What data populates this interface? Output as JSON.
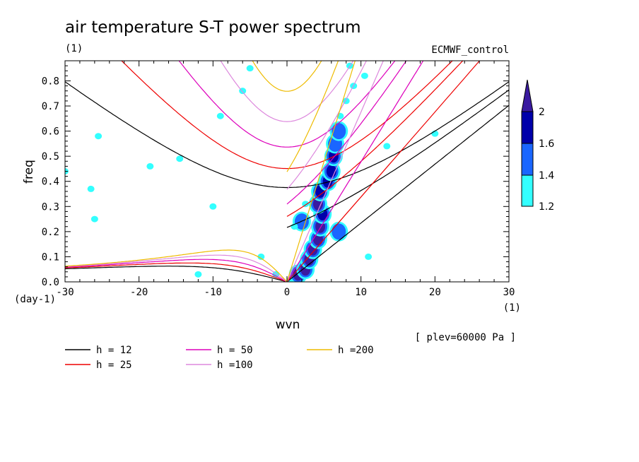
{
  "chart_data": {
    "type": "contour",
    "title": "air temperature S-T power spectrum",
    "units": "(1)",
    "model": "ECMWF_control",
    "xlabel": "wvn",
    "xunits": "(1)",
    "ylabel": "freq",
    "yunits": "(day-1)",
    "level_note": "[ plev=60000 Pa ]",
    "xlim": [
      -30,
      30
    ],
    "ylim": [
      0,
      0.88
    ],
    "x_ticks": [
      -30,
      -20,
      -10,
      0,
      10,
      20,
      30
    ],
    "x_tick_labels": [
      "-30",
      "-20",
      "-10",
      "0",
      "10",
      "20",
      "30"
    ],
    "y_ticks": [
      0,
      0.1,
      0.2,
      0.3,
      0.4,
      0.5,
      0.6,
      0.7,
      0.8
    ],
    "y_tick_labels": [
      "0.0",
      "0.1",
      "0.2",
      "0.3",
      "0.4",
      "0.5",
      "0.6",
      "0.7",
      "0.8"
    ],
    "colorbar": {
      "levels": [
        1.2,
        1.4,
        1.6,
        2
      ],
      "level_labels": [
        "1.2",
        "1.4",
        "1.6",
        "2"
      ],
      "colors": [
        "#33ffff",
        "#1a66ff",
        "#0000aa",
        "#3a1aa0"
      ]
    },
    "series": [
      {
        "name": "h = 12",
        "h": 12,
        "color": "#000000"
      },
      {
        "name": "h = 25",
        "h": 25,
        "color": "#ee0000"
      },
      {
        "name": "h = 50",
        "h": 50,
        "color": "#dd00bb"
      },
      {
        "name": "h =100",
        "h": 100,
        "color": "#dd88dd"
      },
      {
        "name": "h =200",
        "h": 200,
        "color": "#eebb00"
      }
    ],
    "power_blobs": [
      {
        "k": 0.5,
        "f": 0.01,
        "level": 1.2
      },
      {
        "k": 1.5,
        "f": 0.03,
        "level": 2
      },
      {
        "k": 2.5,
        "f": 0.05,
        "level": 2
      },
      {
        "k": 3.0,
        "f": 0.09,
        "level": 2
      },
      {
        "k": 3.5,
        "f": 0.13,
        "level": 2
      },
      {
        "k": 4.2,
        "f": 0.17,
        "level": 2
      },
      {
        "k": 4.5,
        "f": 0.22,
        "level": 2
      },
      {
        "k": 4.8,
        "f": 0.27,
        "level": 1.6
      },
      {
        "k": 4.2,
        "f": 0.31,
        "level": 2
      },
      {
        "k": 4.5,
        "f": 0.36,
        "level": 1.6
      },
      {
        "k": 5.5,
        "f": 0.4,
        "level": 1.6
      },
      {
        "k": 6.0,
        "f": 0.44,
        "level": 1.6
      },
      {
        "k": 6.3,
        "f": 0.5,
        "level": 1.6
      },
      {
        "k": 6.5,
        "f": 0.55,
        "level": 1.4
      },
      {
        "k": 7.0,
        "f": 0.6,
        "level": 1.4
      },
      {
        "k": 7.2,
        "f": 0.66,
        "level": 1.2
      },
      {
        "k": 8.0,
        "f": 0.72,
        "level": 1.2
      },
      {
        "k": 9.0,
        "f": 0.78,
        "level": 1.2
      },
      {
        "k": 10.5,
        "f": 0.82,
        "level": 1.2
      },
      {
        "k": 7.0,
        "f": 0.2,
        "level": 1.4
      },
      {
        "k": 2.0,
        "f": 0.24,
        "level": 1.4
      },
      {
        "k": 2.5,
        "f": 0.31,
        "level": 1.2
      },
      {
        "k": 1.0,
        "f": 0.22,
        "level": 1.2
      },
      {
        "k": -5.0,
        "f": 0.85,
        "level": 1.2
      },
      {
        "k": -6.0,
        "f": 0.76,
        "level": 1.2
      },
      {
        "k": -9.0,
        "f": 0.66,
        "level": 1.2
      },
      {
        "k": -14.5,
        "f": 0.49,
        "level": 1.2
      },
      {
        "k": -18.5,
        "f": 0.46,
        "level": 1.2
      },
      {
        "k": -25.5,
        "f": 0.58,
        "level": 1.2
      },
      {
        "k": -26.5,
        "f": 0.37,
        "level": 1.2
      },
      {
        "k": -26.0,
        "f": 0.25,
        "level": 1.2
      },
      {
        "k": -12.0,
        "f": 0.03,
        "level": 1.2
      },
      {
        "k": -10.0,
        "f": 0.3,
        "level": 1.2
      },
      {
        "k": -3.5,
        "f": 0.1,
        "level": 1.2
      },
      {
        "k": -1.5,
        "f": 0.03,
        "level": 1.2
      },
      {
        "k": -30.0,
        "f": 0.44,
        "level": 1.2
      },
      {
        "k": 11.0,
        "f": 0.1,
        "level": 1.2
      },
      {
        "k": 13.5,
        "f": 0.54,
        "level": 1.2
      },
      {
        "k": 20.0,
        "f": 0.59,
        "level": 1.2
      },
      {
        "k": 8.5,
        "f": 0.86,
        "level": 1.2
      }
    ]
  }
}
